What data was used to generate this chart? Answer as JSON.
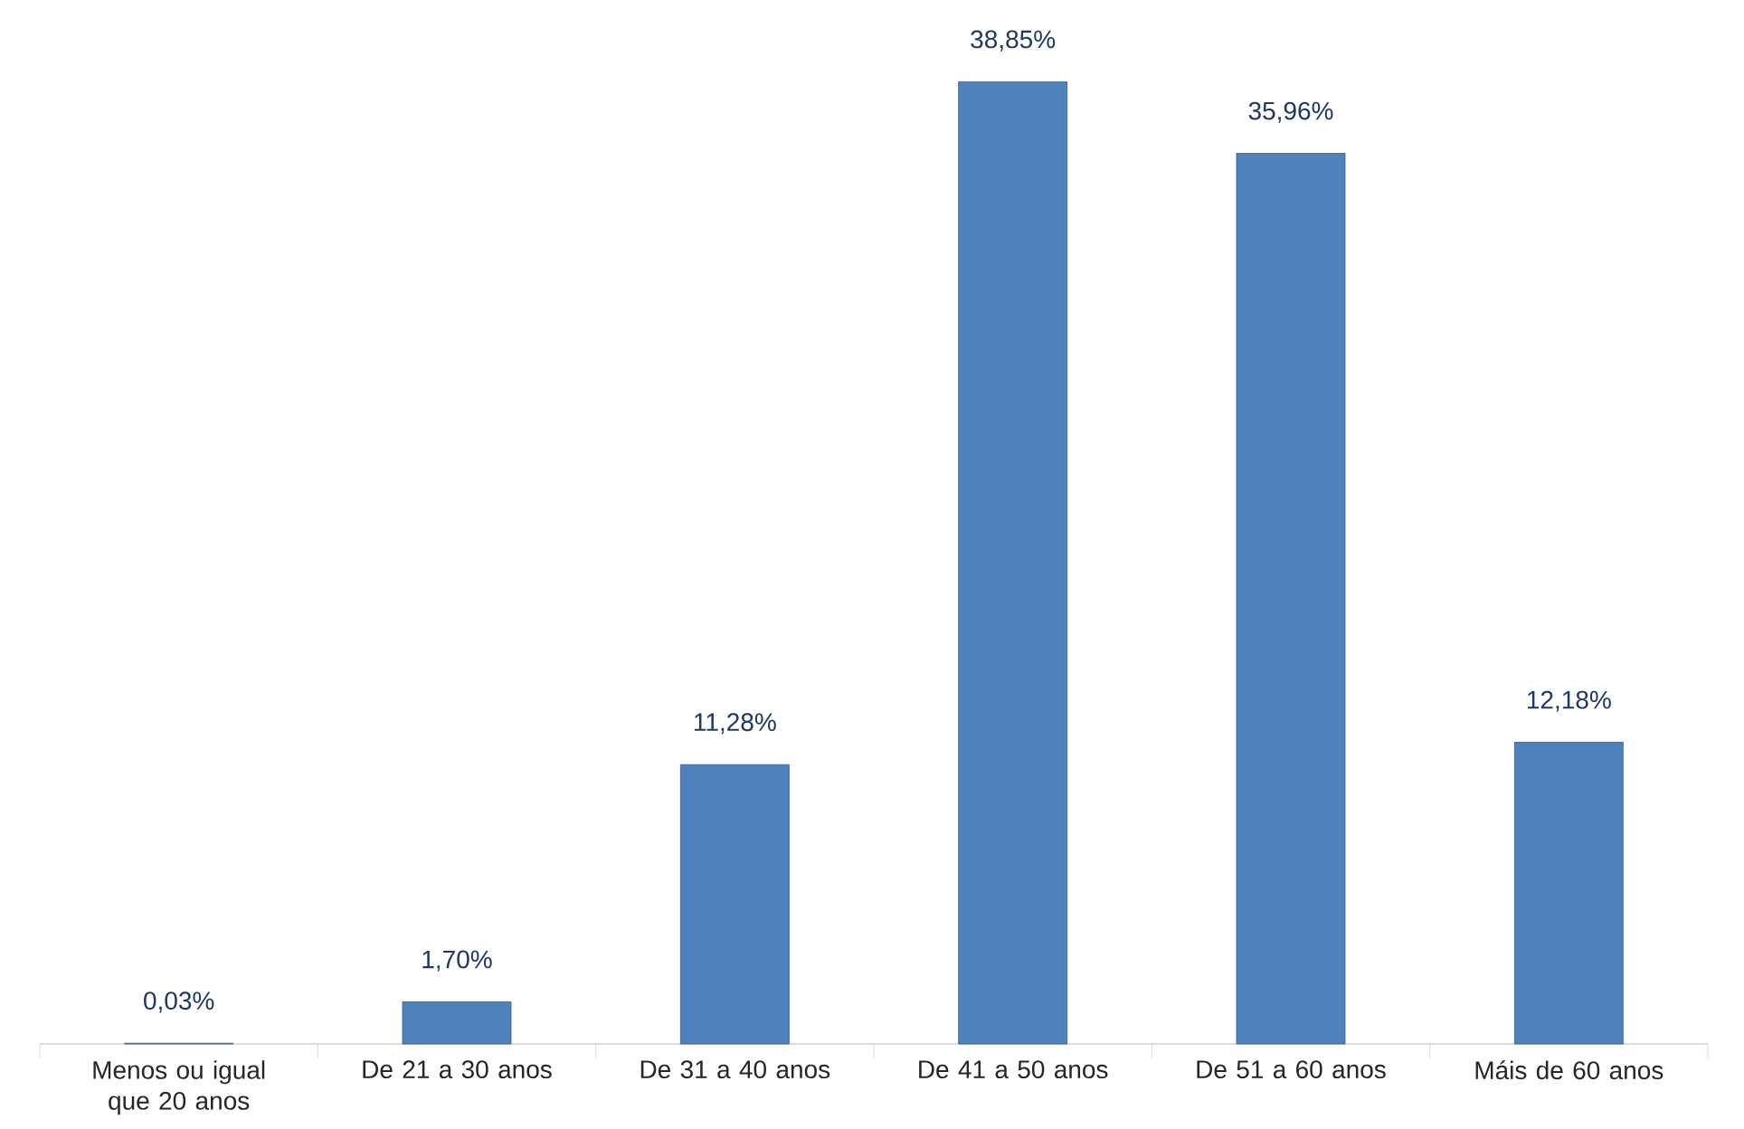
{
  "chart_data": {
    "type": "bar",
    "categories": [
      "Menos ou igual que 20 anos",
      "De 21 a 30 anos",
      "De 31 a 40 anos",
      "De 41 a 50 anos",
      "De 51 a 60 anos",
      "Máis de 60 anos"
    ],
    "values": [
      0.03,
      1.7,
      11.28,
      38.85,
      35.96,
      12.18
    ],
    "value_labels": [
      "0,03%",
      "1,70%",
      "11,28%",
      "38,85%",
      "35,96%",
      "12,18%"
    ],
    "color": "#4f81bd"
  }
}
